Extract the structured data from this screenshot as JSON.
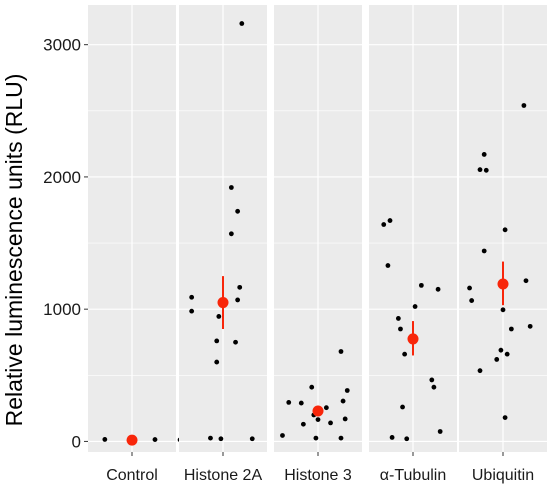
{
  "chart_data": {
    "type": "scatter",
    "ylabel": "Relative luminescence units (RLU)",
    "xlabel": "",
    "ylim": [
      -80,
      3300
    ],
    "yticks": [
      0,
      1000,
      2000,
      3000
    ],
    "grid": true,
    "colors": {
      "panel": "#ebebeb",
      "grid": "#ffffff",
      "points": "#000000",
      "summary": "#f8260a"
    },
    "panels": [
      {
        "label": "Control",
        "points": [
          {
            "x": -0.65,
            "y": 15
          },
          {
            "x": 0.05,
            "y": 12
          },
          {
            "x": 0.55,
            "y": 14
          },
          {
            "x": 1.15,
            "y": 12
          }
        ],
        "mean": 10,
        "err_low": 10,
        "err_high": 10
      },
      {
        "label": "Histone 2A",
        "points": [
          {
            "x": -0.75,
            "y": 1090
          },
          {
            "x": -0.75,
            "y": 985
          },
          {
            "x": -0.3,
            "y": 25
          },
          {
            "x": -0.15,
            "y": 760
          },
          {
            "x": -0.15,
            "y": 600
          },
          {
            "x": -0.1,
            "y": 945
          },
          {
            "x": -0.05,
            "y": 20
          },
          {
            "x": 0.2,
            "y": 1920
          },
          {
            "x": 0.2,
            "y": 1570
          },
          {
            "x": 0.3,
            "y": 750
          },
          {
            "x": 0.35,
            "y": 1740
          },
          {
            "x": 0.35,
            "y": 1070
          },
          {
            "x": 0.4,
            "y": 1165
          },
          {
            "x": 0.45,
            "y": 3160
          },
          {
            "x": 0.7,
            "y": 20
          }
        ],
        "mean": 1050,
        "err_low": 850,
        "err_high": 1250
      },
      {
        "label": "Histone 3",
        "points": [
          {
            "x": -0.85,
            "y": 45
          },
          {
            "x": -0.7,
            "y": 295
          },
          {
            "x": -0.4,
            "y": 290
          },
          {
            "x": -0.35,
            "y": 130
          },
          {
            "x": -0.15,
            "y": 410
          },
          {
            "x": -0.1,
            "y": 200
          },
          {
            "x": -0.05,
            "y": 25
          },
          {
            "x": 0.0,
            "y": 165
          },
          {
            "x": 0.2,
            "y": 255
          },
          {
            "x": 0.3,
            "y": 140
          },
          {
            "x": 0.55,
            "y": 680
          },
          {
            "x": 0.55,
            "y": 25
          },
          {
            "x": 0.6,
            "y": 305
          },
          {
            "x": 0.65,
            "y": 170
          },
          {
            "x": 0.7,
            "y": 385
          }
        ],
        "mean": 230,
        "err_low": 190,
        "err_high": 270
      },
      {
        "label": "α-Tubulin",
        "points": [
          {
            "x": -0.7,
            "y": 1640
          },
          {
            "x": -0.55,
            "y": 1670
          },
          {
            "x": -0.6,
            "y": 1330
          },
          {
            "x": -0.5,
            "y": 30
          },
          {
            "x": -0.35,
            "y": 930
          },
          {
            "x": -0.3,
            "y": 850
          },
          {
            "x": -0.25,
            "y": 260
          },
          {
            "x": -0.2,
            "y": 660
          },
          {
            "x": -0.15,
            "y": 20
          },
          {
            "x": 0.05,
            "y": 1020
          },
          {
            "x": 0.2,
            "y": 1180
          },
          {
            "x": 0.45,
            "y": 465
          },
          {
            "x": 0.5,
            "y": 410
          },
          {
            "x": 0.6,
            "y": 1150
          },
          {
            "x": 0.65,
            "y": 75
          }
        ],
        "mean": 775,
        "err_low": 650,
        "err_high": 910
      },
      {
        "label": "Ubiquitin",
        "points": [
          {
            "x": -0.8,
            "y": 1160
          },
          {
            "x": -0.75,
            "y": 1065
          },
          {
            "x": -0.55,
            "y": 2055
          },
          {
            "x": -0.45,
            "y": 2170
          },
          {
            "x": -0.4,
            "y": 2050
          },
          {
            "x": -0.45,
            "y": 1440
          },
          {
            "x": -0.55,
            "y": 535
          },
          {
            "x": -0.15,
            "y": 620
          },
          {
            "x": -0.05,
            "y": 690
          },
          {
            "x": 0.0,
            "y": 995
          },
          {
            "x": 0.05,
            "y": 180
          },
          {
            "x": 0.05,
            "y": 1600
          },
          {
            "x": 0.1,
            "y": 660
          },
          {
            "x": 0.2,
            "y": 850
          },
          {
            "x": 0.5,
            "y": 2540
          },
          {
            "x": 0.55,
            "y": 1215
          },
          {
            "x": 0.65,
            "y": 870
          }
        ],
        "mean": 1190,
        "err_low": 1030,
        "err_high": 1360
      }
    ]
  }
}
